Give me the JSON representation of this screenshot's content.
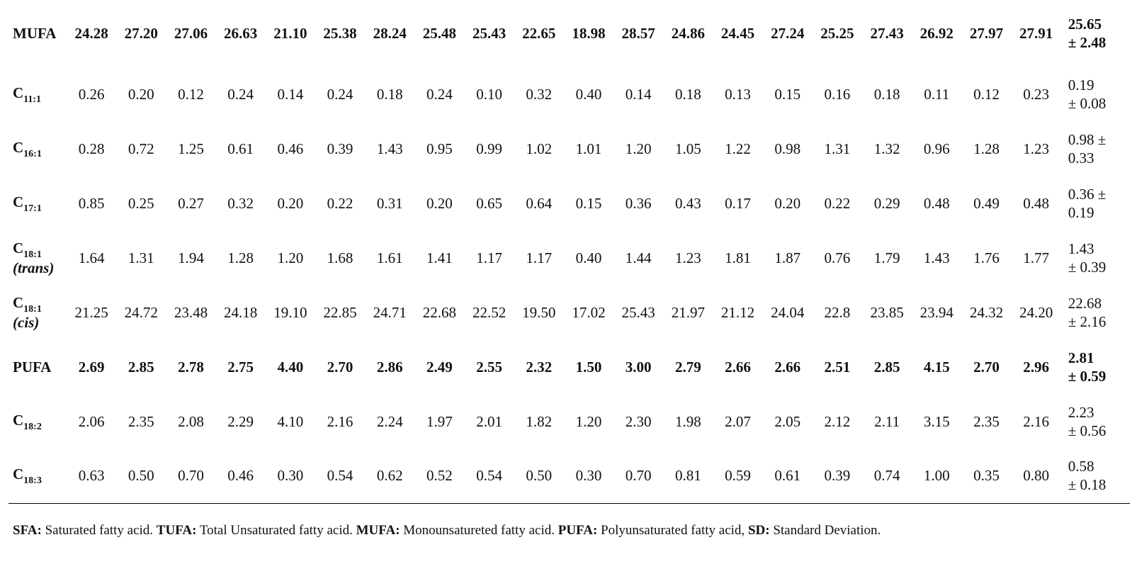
{
  "rows": [
    {
      "label": "MUFA",
      "sub": "",
      "note": "",
      "bold": true,
      "values": [
        "24.28",
        "27.20",
        "27.06",
        "26.63",
        "21.10",
        "25.38",
        "28.24",
        "25.48",
        "25.43",
        "22.65",
        "18.98",
        "28.57",
        "24.86",
        "24.45",
        "27.24",
        "25.25",
        "27.43",
        "26.92",
        "27.97",
        "27.91"
      ],
      "mean": "25.65",
      "sd": "± 2.48"
    },
    {
      "label": "C",
      "sub": "11:1",
      "note": "",
      "bold": false,
      "values": [
        "0.26",
        "0.20",
        "0.12",
        "0.24",
        "0.14",
        "0.24",
        "0.18",
        "0.24",
        "0.10",
        "0.32",
        "0.40",
        "0.14",
        "0.18",
        "0.13",
        "0.15",
        "0.16",
        "0.18",
        "0.11",
        "0.12",
        "0.23"
      ],
      "mean": "0.19",
      "sd": "± 0.08"
    },
    {
      "label": "C",
      "sub": "16:1",
      "note": "",
      "bold": false,
      "values": [
        "0.28",
        "0.72",
        "1.25",
        "0.61",
        "0.46",
        "0.39",
        "1.43",
        "0.95",
        "0.99",
        "1.02",
        "1.01",
        "1.20",
        "1.05",
        "1.22",
        "0.98",
        "1.31",
        "1.32",
        "0.96",
        "1.28",
        "1.23"
      ],
      "mean": "0.98 ±",
      "sd": "0.33"
    },
    {
      "label": "C",
      "sub": "17:1",
      "note": "",
      "bold": false,
      "values": [
        "0.85",
        "0.25",
        "0.27",
        "0.32",
        "0.20",
        "0.22",
        "0.31",
        "0.20",
        "0.65",
        "0.64",
        "0.15",
        "0.36",
        "0.43",
        "0.17",
        "0.20",
        "0.22",
        "0.29",
        "0.48",
        "0.49",
        "0.48"
      ],
      "mean": "0.36 ±",
      "sd": "0.19"
    },
    {
      "label": "C",
      "sub": "18:1",
      "note": "(trans)",
      "bold": false,
      "values": [
        "1.64",
        "1.31",
        "1.94",
        "1.28",
        "1.20",
        "1.68",
        "1.61",
        "1.41",
        "1.17",
        "1.17",
        "0.40",
        "1.44",
        "1.23",
        "1.81",
        "1.87",
        "0.76",
        "1.79",
        "1.43",
        "1.76",
        "1.77"
      ],
      "mean": "1.43",
      "sd": "± 0.39"
    },
    {
      "label": "C",
      "sub": "18:1",
      "note": "(cis)",
      "bold": false,
      "values": [
        "21.25",
        "24.72",
        "23.48",
        "24.18",
        "19.10",
        "22.85",
        "24.71",
        "22.68",
        "22.52",
        "19.50",
        "17.02",
        "25.43",
        "21.97",
        "21.12",
        "24.04",
        "22.8",
        "23.85",
        "23.94",
        "24.32",
        "24.20"
      ],
      "mean": "22.68",
      "sd": "± 2.16"
    },
    {
      "label": "PUFA",
      "sub": "",
      "note": "",
      "bold": true,
      "values": [
        "2.69",
        "2.85",
        "2.78",
        "2.75",
        "4.40",
        "2.70",
        "2.86",
        "2.49",
        "2.55",
        "2.32",
        "1.50",
        "3.00",
        "2.79",
        "2.66",
        "2.66",
        "2.51",
        "2.85",
        "4.15",
        "2.70",
        "2.96"
      ],
      "mean": "2.81",
      "sd": "± 0.59"
    },
    {
      "label": "C",
      "sub": "18:2",
      "note": "",
      "bold": false,
      "values": [
        "2.06",
        "2.35",
        "2.08",
        "2.29",
        "4.10",
        "2.16",
        "2.24",
        "1.97",
        "2.01",
        "1.82",
        "1.20",
        "2.30",
        "1.98",
        "2.07",
        "2.05",
        "2.12",
        "2.11",
        "3.15",
        "2.35",
        "2.16"
      ],
      "mean": "2.23",
      "sd": "± 0.56"
    },
    {
      "label": "C",
      "sub": "18:3",
      "note": "",
      "bold": false,
      "values": [
        "0.63",
        "0.50",
        "0.70",
        "0.46",
        "0.30",
        "0.54",
        "0.62",
        "0.52",
        "0.54",
        "0.50",
        "0.30",
        "0.70",
        "0.81",
        "0.59",
        "0.61",
        "0.39",
        "0.74",
        "1.00",
        "0.35",
        "0.80"
      ],
      "mean": "0.58",
      "sd": "± 0.18"
    }
  ],
  "footnote": {
    "items": [
      {
        "abbr": "SFA:",
        "text": " Saturated fatty acid. "
      },
      {
        "abbr": "TUFA:",
        "text": " Total Unsaturated fatty acid. "
      },
      {
        "abbr": "MUFA:",
        "text": " Monounsatureted fatty acid. "
      },
      {
        "abbr": "PUFA:",
        "text": " Polyunsaturated fatty acid, "
      },
      {
        "abbr": "SD:",
        "text": " Standard Deviation."
      }
    ]
  }
}
